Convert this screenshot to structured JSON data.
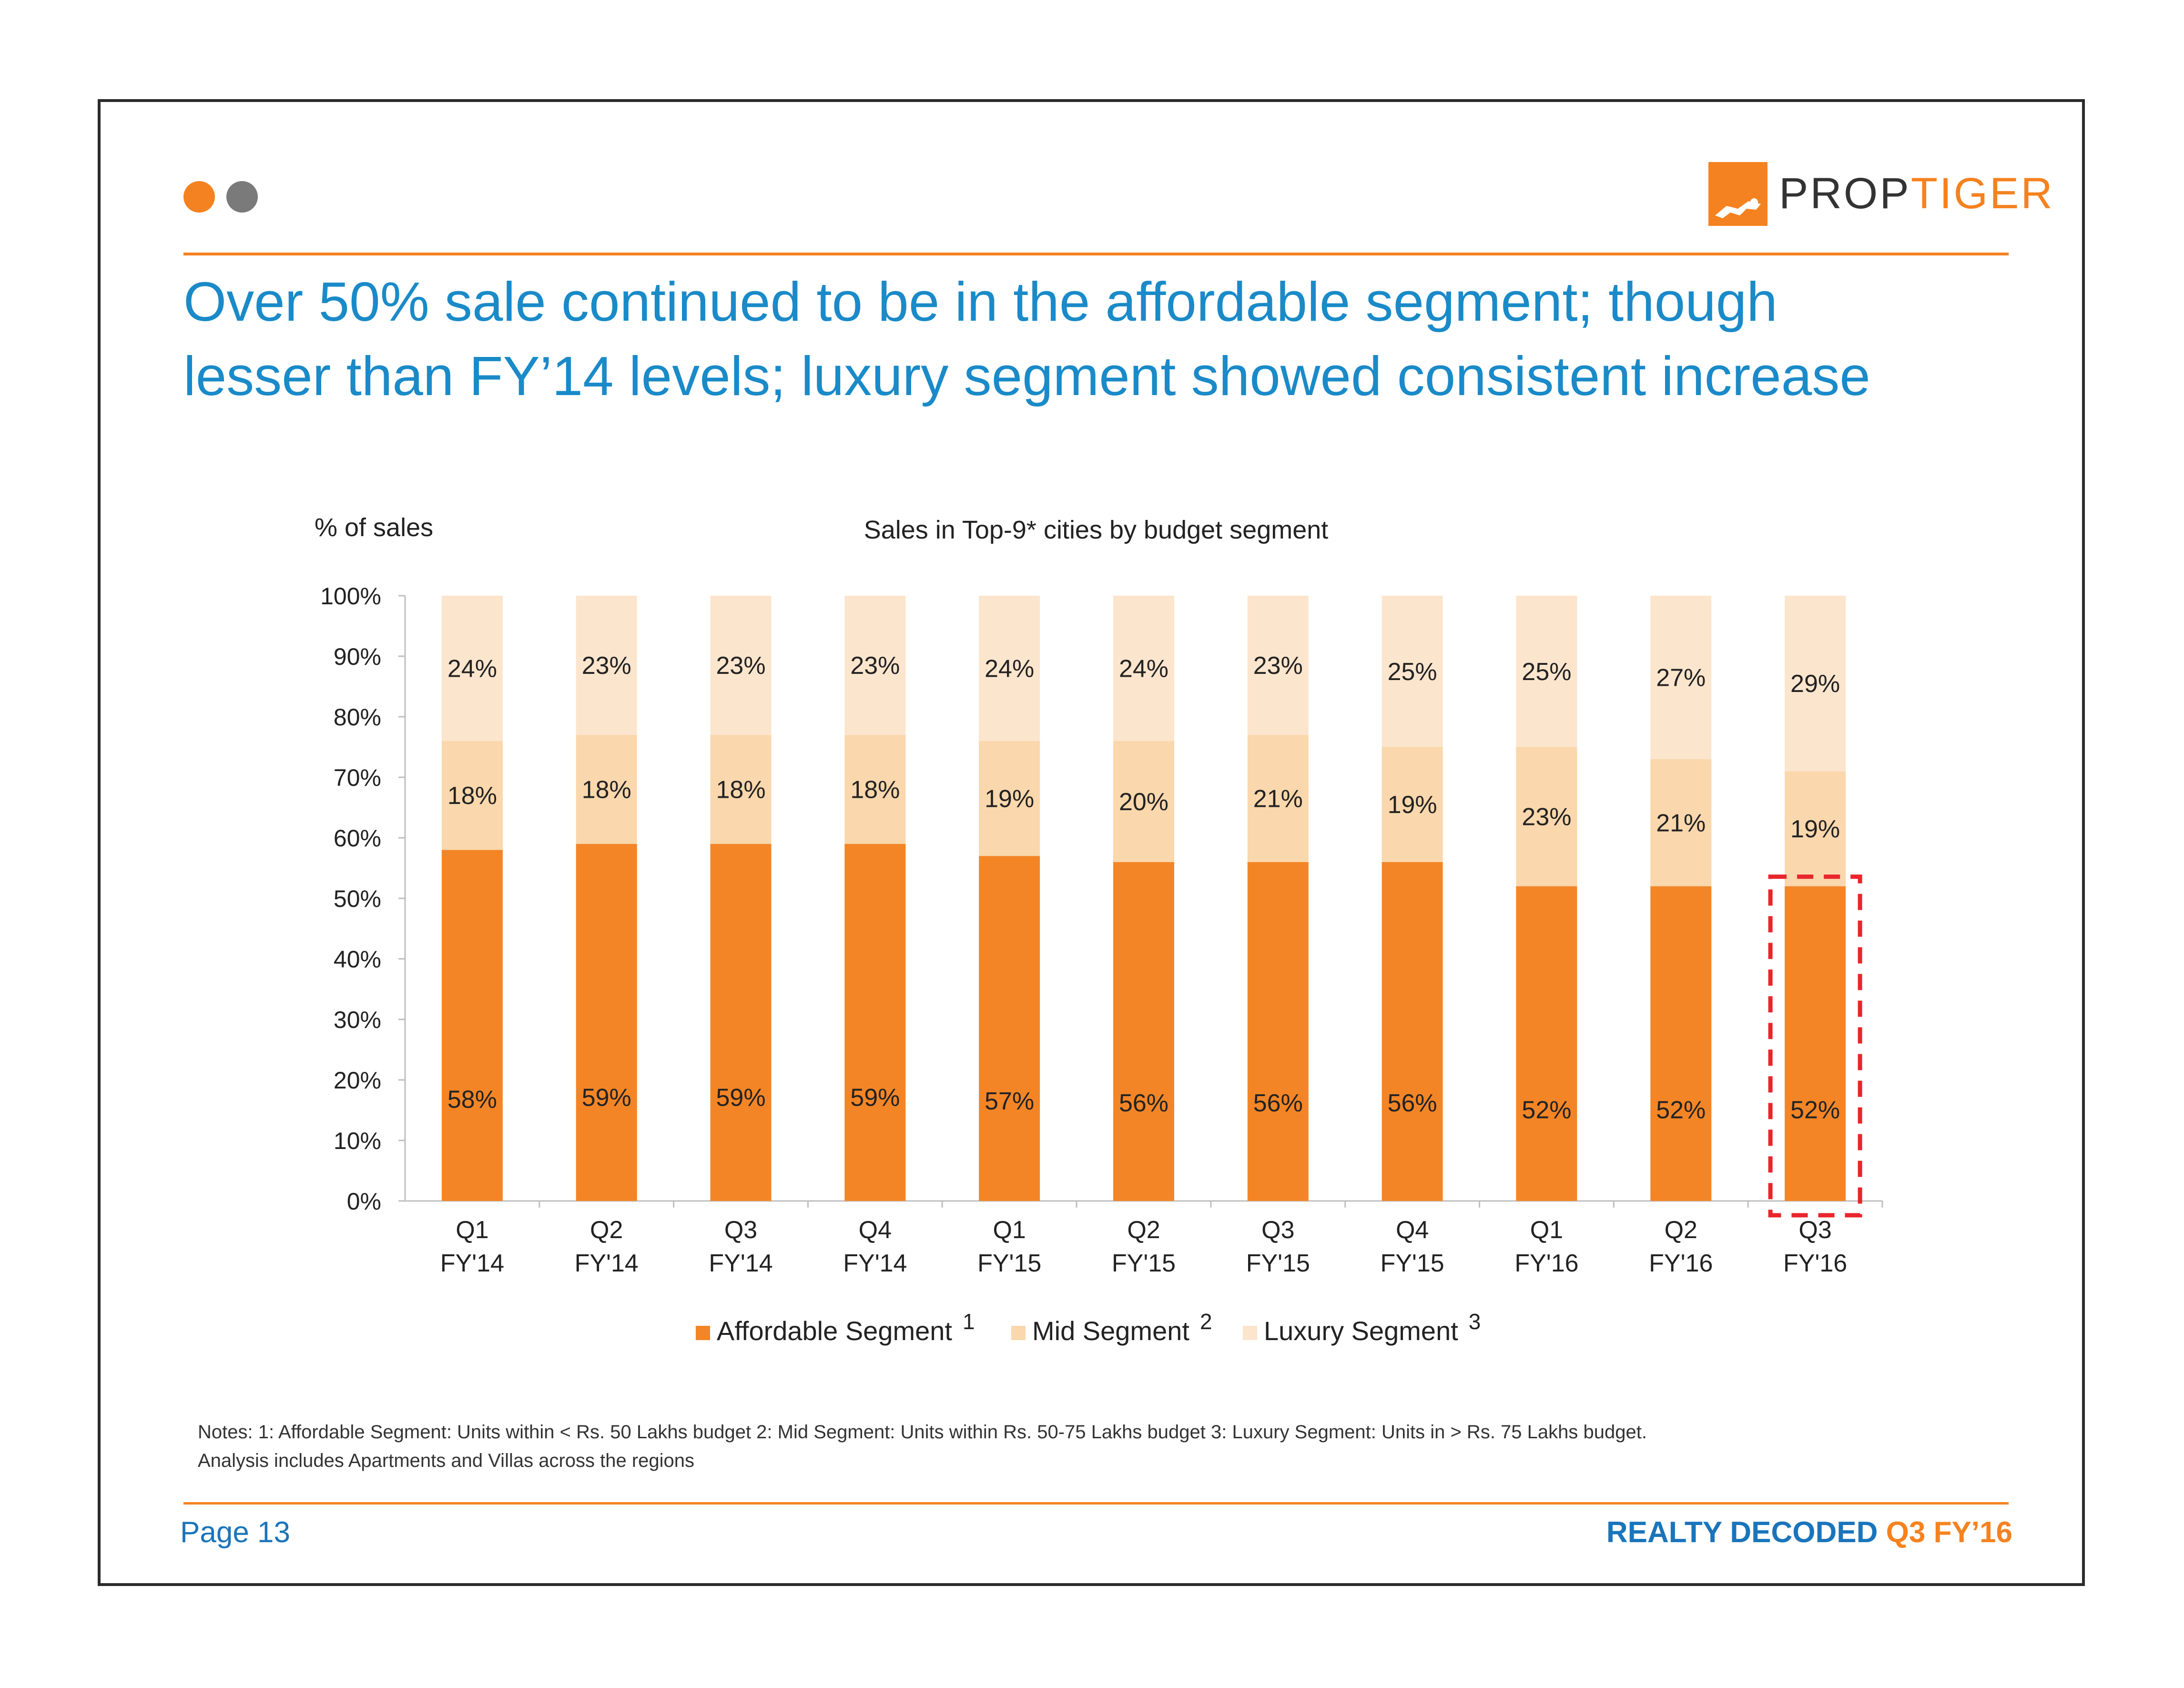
{
  "header": {
    "logo_text_prop": "PROP",
    "logo_text_tiger": "TIGER",
    "headline": "Over 50% sale continued to be in the affordable segment; though\nlesser than FY’14 levels; luxury segment showed consistent increase"
  },
  "colors": {
    "accent": "#f58220",
    "dot_grey": "#7a7a7a",
    "headline_blue": "#1a8ac8",
    "affordable": "#f38526",
    "mid": "#fad7ac",
    "luxury": "#fce5cd",
    "highlight": "#e8262b",
    "footer_blue": "#1a75bb"
  },
  "legend": {
    "affordable": "Affordable Segment",
    "affordable_note": "1",
    "mid": "Mid Segment",
    "mid_note": "2",
    "luxury": "Luxury Segment",
    "luxury_note": "3"
  },
  "notes": {
    "line1": "Notes: 1: Affordable Segment: Units within < Rs. 50 Lakhs budget 2: Mid Segment: Units within Rs. 50-75 Lakhs budget 3: Luxury Segment: Units in > Rs. 75 Lakhs budget.",
    "line2": "Analysis includes Apartments and Villas across the regions"
  },
  "footer": {
    "page": "Page 13",
    "brand": "REALTY DECODED",
    "edition": "Q3 FY’16"
  },
  "chart_data": {
    "type": "bar",
    "stacked": true,
    "title": "Sales in Top-9* cities by budget segment",
    "ylabel": "% of sales",
    "ylim": [
      0,
      100
    ],
    "yticks": [
      "0%",
      "10%",
      "20%",
      "30%",
      "40%",
      "50%",
      "60%",
      "70%",
      "80%",
      "90%",
      "100%"
    ],
    "categories": [
      [
        "Q1",
        "FY'14"
      ],
      [
        "Q2",
        "FY'14"
      ],
      [
        "Q3",
        "FY'14"
      ],
      [
        "Q4",
        "FY'14"
      ],
      [
        "Q1",
        "FY'15"
      ],
      [
        "Q2",
        "FY'15"
      ],
      [
        "Q3",
        "FY'15"
      ],
      [
        "Q4",
        "FY'15"
      ],
      [
        "Q1",
        "FY'16"
      ],
      [
        "Q2",
        "FY'16"
      ],
      [
        "Q3",
        "FY'16"
      ]
    ],
    "series": [
      {
        "name": "Affordable Segment",
        "values": [
          58,
          59,
          59,
          59,
          57,
          56,
          56,
          56,
          52,
          52,
          52
        ],
        "labels": [
          "58%",
          "59%",
          "59%",
          "59%",
          "57%",
          "56%",
          "56%",
          "56%",
          "52%",
          "52%",
          "52%"
        ]
      },
      {
        "name": "Mid Segment",
        "values": [
          18,
          18,
          18,
          18,
          19,
          20,
          21,
          19,
          23,
          21,
          19
        ],
        "labels": [
          "18%",
          "18%",
          "18%",
          "18%",
          "19%",
          "20%",
          "21%",
          "19%",
          "23%",
          "21%",
          "19%"
        ]
      },
      {
        "name": "Luxury Segment",
        "values": [
          24,
          23,
          23,
          23,
          24,
          24,
          23,
          25,
          25,
          27,
          29
        ],
        "labels": [
          "24%",
          "23%",
          "23%",
          "23%",
          "24%",
          "24%",
          "23%",
          "25%",
          "25%",
          "27%",
          "29%"
        ]
      }
    ],
    "highlight_index": 10,
    "legend": "bottom"
  }
}
